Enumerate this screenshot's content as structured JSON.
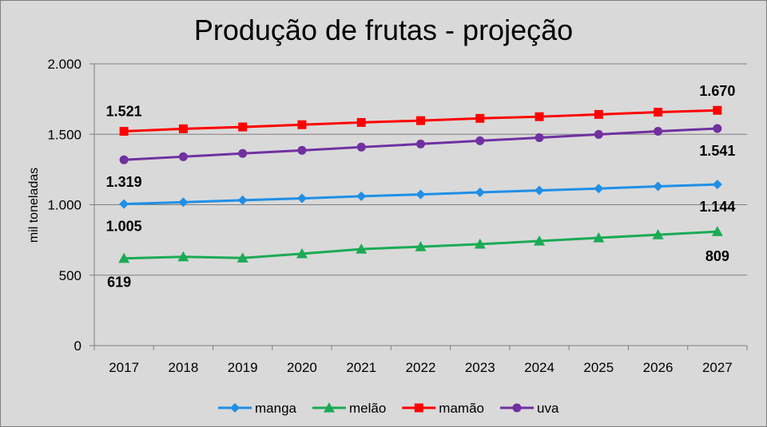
{
  "chart_data": {
    "type": "line",
    "title": "Produção de frutas - projeção",
    "xlabel": "",
    "ylabel": "mil toneladas",
    "ylim": [
      0,
      2000
    ],
    "yticks": [
      0,
      500,
      1000,
      1500,
      2000
    ],
    "ytick_labels": [
      "0",
      "500",
      "1.000",
      "1.500",
      "2.000"
    ],
    "categories": [
      "2017",
      "2018",
      "2019",
      "2020",
      "2021",
      "2022",
      "2023",
      "2024",
      "2025",
      "2026",
      "2027"
    ],
    "grid": true,
    "legend": "bottom",
    "series": [
      {
        "name": "manga",
        "color": "#1f8fe6",
        "marker": "diamond",
        "values": [
          1005,
          1018,
          1032,
          1045,
          1060,
          1073,
          1088,
          1101,
          1115,
          1130,
          1144
        ],
        "labels": [
          {
            "index": 0,
            "text": "1.005"
          },
          {
            "index": 10,
            "text": "1.144"
          }
        ]
      },
      {
        "name": "melão",
        "color": "#1aab55",
        "marker": "triangle",
        "values": [
          619,
          630,
          622,
          652,
          685,
          702,
          720,
          742,
          765,
          787,
          809
        ],
        "labels": [
          {
            "index": 0,
            "text": "619"
          },
          {
            "index": 10,
            "text": "809"
          }
        ]
      },
      {
        "name": "mamão",
        "color": "#ff0000",
        "marker": "square",
        "values": [
          1521,
          1539,
          1552,
          1568,
          1584,
          1597,
          1613,
          1625,
          1641,
          1657,
          1670
        ],
        "labels": [
          {
            "index": 0,
            "text": "1.521"
          },
          {
            "index": 10,
            "text": "1.670"
          }
        ]
      },
      {
        "name": "uva",
        "color": "#7030a0",
        "marker": "circle",
        "values": [
          1319,
          1341,
          1364,
          1386,
          1409,
          1431,
          1454,
          1476,
          1499,
          1521,
          1541
        ],
        "labels": [
          {
            "index": 0,
            "text": "1.319"
          },
          {
            "index": 10,
            "text": "1.541"
          }
        ]
      }
    ]
  }
}
